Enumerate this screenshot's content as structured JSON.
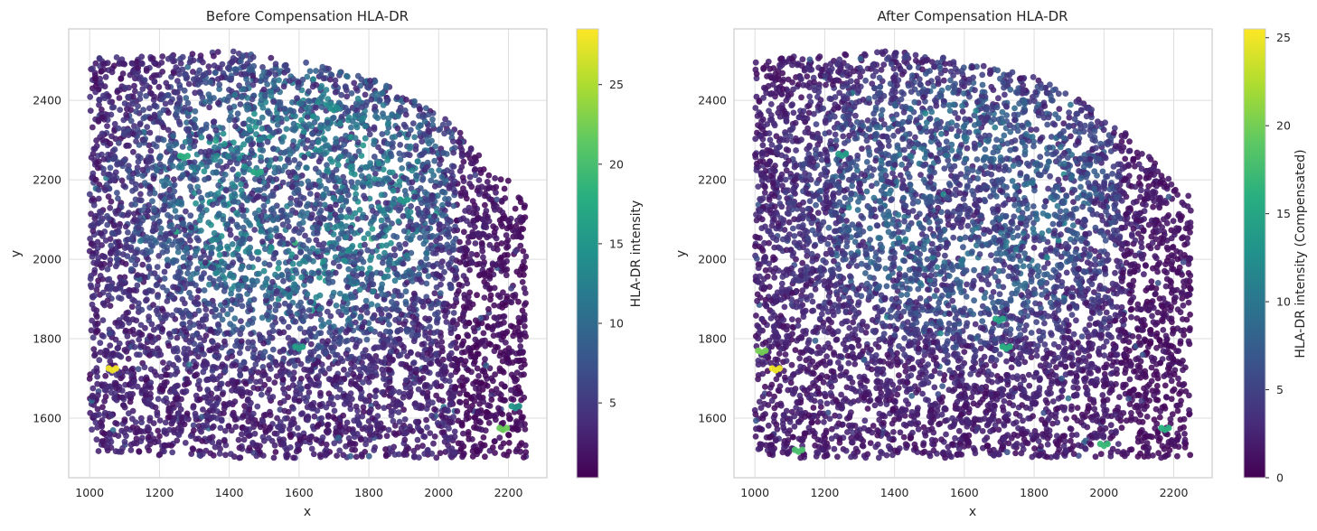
{
  "chart_data": [
    {
      "type": "scatter",
      "title": "Before Compensation HLA-DR",
      "xlabel": "x",
      "ylabel": "y",
      "xlim": [
        940,
        2310
      ],
      "ylim": [
        1450,
        2580
      ],
      "xticks": [
        1000,
        1200,
        1400,
        1600,
        1800,
        2000,
        2200
      ],
      "yticks": [
        1600,
        1800,
        2000,
        2200,
        2400
      ],
      "grid": true,
      "colormap": "viridis",
      "point_color_dark": "#440154",
      "point_color_bright": "#fde725",
      "colorbar": {
        "label": "HLA-DR intensity",
        "range": [
          0.3,
          28.5
        ],
        "ticks": [
          5,
          10,
          15,
          20,
          25
        ],
        "tick_labels": [
          "5",
          "10",
          "15",
          "20",
          "25"
        ]
      },
      "spatial_extent": {
        "x_range": [
          1000,
          2250
        ],
        "y_range": [
          1500,
          2525
        ],
        "boundary_arc_points": [
          [
            1400,
            2525
          ],
          [
            1600,
            2500
          ],
          [
            1800,
            2460
          ],
          [
            2000,
            2370
          ],
          [
            2100,
            2290
          ],
          [
            2180,
            2210
          ],
          [
            2250,
            2170
          ]
        ]
      },
      "bright_spots": [
        {
          "x": 1065,
          "y": 1725,
          "value": 28
        },
        {
          "x": 2185,
          "y": 1575,
          "value": 22
        },
        {
          "x": 1270,
          "y": 2260,
          "value": 18
        },
        {
          "x": 1700,
          "y": 2380,
          "value": 14
        },
        {
          "x": 1480,
          "y": 2220,
          "value": 17
        },
        {
          "x": 1900,
          "y": 2150,
          "value": 15
        },
        {
          "x": 1600,
          "y": 1780,
          "value": 16
        },
        {
          "x": 2220,
          "y": 1630,
          "value": 15
        }
      ]
    },
    {
      "type": "scatter",
      "title": "After Compensation HLA-DR",
      "xlabel": "x",
      "ylabel": "y",
      "xlim": [
        940,
        2310
      ],
      "ylim": [
        1450,
        2580
      ],
      "xticks": [
        1000,
        1200,
        1400,
        1600,
        1800,
        2000,
        2200
      ],
      "yticks": [
        1600,
        1800,
        2000,
        2200,
        2400
      ],
      "grid": true,
      "colormap": "viridis",
      "point_color_dark": "#440154",
      "point_color_bright": "#fde725",
      "colorbar": {
        "label": "HLA-DR intensity (Compensated)",
        "range": [
          0,
          25.5
        ],
        "ticks": [
          0,
          5,
          10,
          15,
          20,
          25
        ],
        "tick_labels": [
          "0",
          "5",
          "10",
          "15",
          "20",
          "25"
        ]
      },
      "spatial_extent": {
        "x_range": [
          1000,
          2250
        ],
        "y_range": [
          1500,
          2525
        ],
        "boundary_arc_points": [
          [
            1400,
            2525
          ],
          [
            1600,
            2500
          ],
          [
            1800,
            2460
          ],
          [
            2000,
            2370
          ],
          [
            2100,
            2290
          ],
          [
            2180,
            2210
          ],
          [
            2250,
            2170
          ]
        ]
      },
      "bright_spots": [
        {
          "x": 1060,
          "y": 1725,
          "value": 25
        },
        {
          "x": 2175,
          "y": 1575,
          "value": 16
        },
        {
          "x": 1125,
          "y": 1520,
          "value": 18
        },
        {
          "x": 1020,
          "y": 1770,
          "value": 20
        },
        {
          "x": 1250,
          "y": 2265,
          "value": 14
        },
        {
          "x": 1700,
          "y": 1850,
          "value": 15
        },
        {
          "x": 1720,
          "y": 1780,
          "value": 16
        },
        {
          "x": 2000,
          "y": 1535,
          "value": 17
        }
      ]
    }
  ]
}
